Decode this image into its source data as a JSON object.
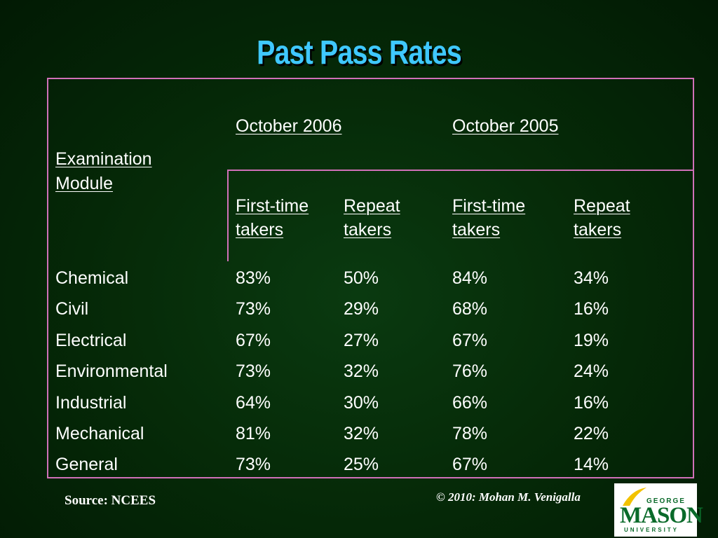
{
  "title": "Past Pass Rates",
  "table": {
    "period_headers": [
      "October 2006",
      "October 2005"
    ],
    "module_header_line1": "Examination",
    "module_header_line2": "Module",
    "sub_headers": [
      {
        "line1": "First-time",
        "line2": "takers"
      },
      {
        "line1": "Repeat",
        "line2": "takers"
      },
      {
        "line1": "First-time",
        "line2": "takers"
      },
      {
        "line1": "Repeat",
        "line2": "takers"
      }
    ],
    "rows": [
      {
        "module": "Chemical",
        "values": [
          "83%",
          "50%",
          "84%",
          "34%"
        ]
      },
      {
        "module": "Civil",
        "values": [
          "73%",
          "29%",
          "68%",
          "16%"
        ]
      },
      {
        "module": "Electrical",
        "values": [
          "67%",
          "27%",
          "67%",
          "19%"
        ]
      },
      {
        "module": "Environmental",
        "values": [
          "73%",
          "32%",
          "76%",
          "24%"
        ]
      },
      {
        "module": "Industrial",
        "values": [
          "64%",
          "30%",
          "66%",
          "16%"
        ]
      },
      {
        "module": "Mechanical",
        "values": [
          "81%",
          "32%",
          "78%",
          "22%"
        ]
      },
      {
        "module": "General",
        "values": [
          "73%",
          "25%",
          "67%",
          "14%"
        ]
      }
    ]
  },
  "source": "Source: NCEES",
  "copyright": "© 2010: Mohan M. Venigalla",
  "logo": {
    "line1": "GEORGE",
    "line2": "MASON",
    "line3": "UNIVERSITY"
  },
  "colors": {
    "title": "#3fc8ff",
    "border": "#d070b8",
    "background": "#052807"
  }
}
